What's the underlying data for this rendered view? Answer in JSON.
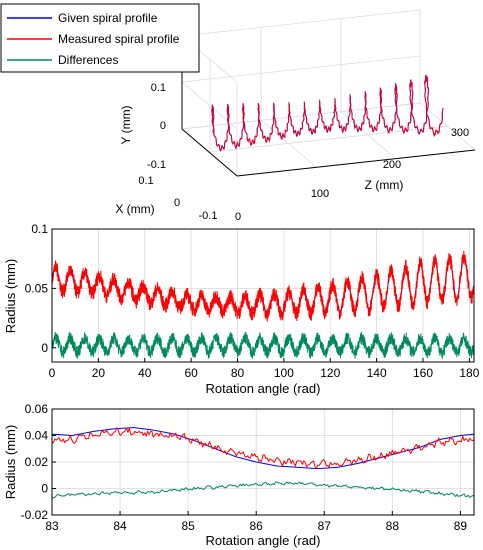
{
  "legend": {
    "placement": "top-left",
    "entries": [
      {
        "label": "Given spiral profile",
        "color": "#0000ee"
      },
      {
        "label": "Measured spiral profile",
        "color": "#ff0000"
      },
      {
        "label": "Differences",
        "color": "#008a5a"
      }
    ]
  },
  "chart_data": [
    {
      "type": "line",
      "projection": "3d",
      "series_labels": [
        "Given spiral profile",
        "Measured spiral profile"
      ],
      "xlabel": "X (mm)",
      "ylabel": "Y (mm)",
      "zlabel": "Z (mm)",
      "xlim": [
        -0.1,
        0.1
      ],
      "ylim": [
        -0.1,
        0.1
      ],
      "zlim": [
        0,
        300
      ],
      "xticks": [
        "0.1",
        "0",
        "-0.1"
      ],
      "yticks": [
        "0.1",
        "0",
        "-0.1"
      ],
      "zticks": [
        "0",
        "100",
        "200",
        "300"
      ],
      "grid": true,
      "turns": 15,
      "z_range": [
        0,
        290
      ],
      "radius_profile": {
        "z": [
          0,
          50,
          100,
          150,
          200,
          250,
          290
        ],
        "r": [
          0.055,
          0.048,
          0.038,
          0.035,
          0.045,
          0.06,
          0.075
        ]
      }
    },
    {
      "type": "line",
      "xlabel": "Rotation angle (rad)",
      "ylabel": "Radius (mm)",
      "xlim": [
        0,
        182
      ],
      "ylim": [
        -0.012,
        0.1
      ],
      "xticks": [
        0,
        20,
        40,
        60,
        80,
        100,
        120,
        140,
        160,
        180
      ],
      "yticks": [
        0,
        0.05,
        0.1
      ],
      "ytick_labels": [
        "0",
        "0.05",
        "0.1"
      ],
      "grid": true,
      "series": [
        {
          "name": "Given spiral profile",
          "color": "#0000ee",
          "baseline": {
            "x": [
              0,
              20,
              40,
              60,
              80,
              100,
              120,
              140,
              160,
              182
            ],
            "y": [
              0.058,
              0.053,
              0.045,
              0.038,
              0.036,
              0.037,
              0.041,
              0.047,
              0.055,
              0.06
            ]
          },
          "oscillation_amplitude": {
            "x": [
              0,
              20,
              40,
              60,
              80,
              100,
              120,
              140,
              160,
              182
            ],
            "y": [
              0.01,
              0.008,
              0.007,
              0.006,
              0.007,
              0.009,
              0.012,
              0.014,
              0.017,
              0.018
            ]
          },
          "cycles_per_rad": 0.159
        },
        {
          "name": "Measured spiral profile",
          "color": "#ff0000",
          "baseline": {
            "x": [
              0,
              20,
              40,
              60,
              80,
              100,
              120,
              140,
              160,
              182
            ],
            "y": [
              0.058,
              0.053,
              0.045,
              0.038,
              0.036,
              0.037,
              0.041,
              0.047,
              0.055,
              0.06
            ]
          },
          "oscillation_amplitude": {
            "x": [
              0,
              20,
              40,
              60,
              80,
              100,
              120,
              140,
              160,
              182
            ],
            "y": [
              0.01,
              0.008,
              0.007,
              0.006,
              0.007,
              0.009,
              0.012,
              0.014,
              0.017,
              0.018
            ]
          },
          "cycles_per_rad": 0.159,
          "noise_amplitude": 0.006
        },
        {
          "name": "Differences",
          "color": "#008a5a",
          "baseline": {
            "x": [
              0,
              182
            ],
            "y": [
              0.002,
              0.002
            ]
          },
          "oscillation_amplitude": {
            "x": [
              0,
              182
            ],
            "y": [
              0.006,
              0.006
            ]
          },
          "cycles_per_rad": 0.159,
          "noise_amplitude": 0.005
        }
      ]
    },
    {
      "type": "line",
      "xlabel": "Rotation angle (rad)",
      "ylabel": "Radius (mm)",
      "xlim": [
        83,
        89.2
      ],
      "ylim": [
        -0.02,
        0.06
      ],
      "xticks": [
        83,
        84,
        85,
        86,
        87,
        88,
        89
      ],
      "yticks": [
        -0.02,
        0,
        0.02,
        0.04,
        0.06
      ],
      "ytick_labels": [
        "-0.02",
        "0",
        "0.02",
        "0.04",
        "0.06"
      ],
      "grid": true,
      "series": [
        {
          "name": "Given spiral profile",
          "color": "#0000ee",
          "x": [
            83.0,
            83.3,
            83.6,
            83.9,
            84.2,
            84.5,
            84.8,
            85.1,
            85.4,
            85.7,
            86.0,
            86.3,
            86.6,
            86.9,
            87.2,
            87.5,
            87.8,
            88.1,
            88.4,
            88.7,
            89.0,
            89.2
          ],
          "y": [
            0.041,
            0.04,
            0.043,
            0.045,
            0.046,
            0.044,
            0.041,
            0.036,
            0.03,
            0.024,
            0.02,
            0.017,
            0.016,
            0.015,
            0.016,
            0.019,
            0.023,
            0.027,
            0.031,
            0.037,
            0.04,
            0.041
          ]
        },
        {
          "name": "Measured spiral profile",
          "color": "#ff0000",
          "x": [
            83.0,
            83.3,
            83.6,
            83.9,
            84.2,
            84.5,
            84.8,
            85.1,
            85.4,
            85.7,
            86.0,
            86.3,
            86.6,
            86.9,
            87.2,
            87.5,
            87.8,
            88.1,
            88.4,
            88.7,
            89.0,
            89.2
          ],
          "y": [
            0.037,
            0.037,
            0.04,
            0.043,
            0.043,
            0.041,
            0.04,
            0.036,
            0.031,
            0.027,
            0.024,
            0.021,
            0.02,
            0.018,
            0.019,
            0.021,
            0.024,
            0.028,
            0.031,
            0.035,
            0.036,
            0.037
          ],
          "noise_amplitude": 0.0035
        },
        {
          "name": "Differences",
          "color": "#008a5a",
          "x": [
            83.0,
            83.3,
            83.6,
            83.9,
            84.2,
            84.5,
            84.8,
            85.1,
            85.4,
            85.7,
            86.0,
            86.3,
            86.6,
            86.9,
            87.2,
            87.5,
            87.8,
            88.1,
            88.4,
            88.7,
            89.0,
            89.2
          ],
          "y": [
            -0.006,
            -0.005,
            -0.004,
            -0.003,
            -0.003,
            -0.003,
            -0.001,
            0.0,
            0.001,
            0.002,
            0.003,
            0.004,
            0.004,
            0.003,
            0.002,
            0.001,
            0.0,
            -0.001,
            -0.002,
            -0.004,
            -0.005,
            -0.006
          ],
          "noise_amplitude": 0.0015
        }
      ]
    }
  ]
}
